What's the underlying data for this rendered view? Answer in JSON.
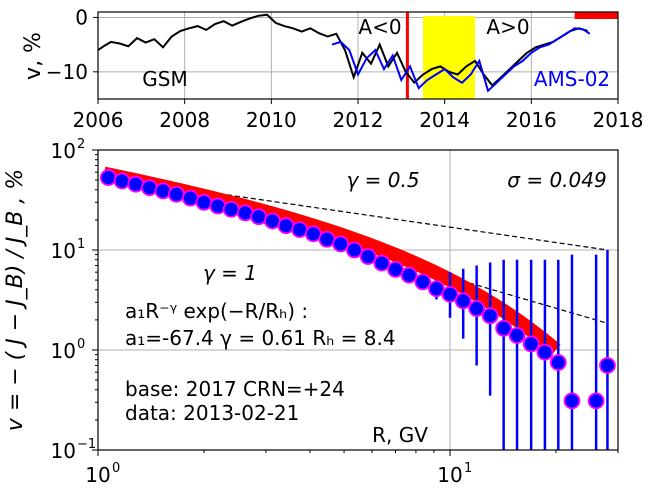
{
  "chart_data": [
    {
      "type": "line",
      "panel": "top",
      "ylabel": "v, %",
      "xlim": [
        2006,
        2018
      ],
      "ylim": [
        -15,
        1
      ],
      "xticks": [
        "2006",
        "2008",
        "2010",
        "2012",
        "2014",
        "2016",
        "2018"
      ],
      "yticks": [
        "0",
        "−10"
      ],
      "grid": true,
      "series": [
        {
          "name": "GSM",
          "color": "#000000",
          "x": [
            2006.0,
            2006.15,
            2006.3,
            2006.5,
            2006.7,
            2006.9,
            2007.1,
            2007.3,
            2007.5,
            2007.7,
            2007.9,
            2008.1,
            2008.3,
            2008.5,
            2008.7,
            2008.9,
            2009.1,
            2009.3,
            2009.5,
            2009.7,
            2009.9,
            2010.1,
            2010.3,
            2010.5,
            2010.7,
            2010.9,
            2011.1,
            2011.3,
            2011.5,
            2011.7,
            2011.9,
            2012.1,
            2012.3,
            2012.5,
            2012.7,
            2012.9,
            2013.1,
            2013.3,
            2013.5,
            2013.7,
            2013.9,
            2014.1,
            2014.3,
            2014.5,
            2014.7,
            2014.9,
            2015.1,
            2015.3,
            2015.5,
            2015.7,
            2015.9,
            2016.1,
            2016.3,
            2016.5,
            2016.7,
            2016.9,
            2017.1,
            2017.3
          ],
          "y": [
            -6.0,
            -5.2,
            -4.5,
            -4.8,
            -5.3,
            -3.8,
            -4.6,
            -4.0,
            -5.5,
            -3.5,
            -2.5,
            -2.0,
            -1.6,
            -2.3,
            -1.2,
            -0.7,
            -1.5,
            -0.8,
            -0.2,
            0.3,
            0.5,
            -1.0,
            -1.6,
            -2.0,
            -2.6,
            -2.0,
            -2.9,
            -3.5,
            -3.0,
            -6.0,
            -11.0,
            -6.5,
            -8.5,
            -5.0,
            -9.0,
            -6.5,
            -10.0,
            -12.0,
            -10.5,
            -9.5,
            -9.0,
            -10.0,
            -10.5,
            -9.0,
            -8.0,
            -10.5,
            -12.5,
            -11.0,
            -9.5,
            -8.0,
            -6.5,
            -5.5,
            -5.0,
            -4.5,
            -3.5,
            -2.5,
            -2.0,
            -2.5
          ]
        },
        {
          "name": "AMS-02",
          "color": "#0000ff",
          "x": [
            2011.4,
            2011.6,
            2011.8,
            2012.0,
            2012.2,
            2012.4,
            2012.6,
            2012.8,
            2013.0,
            2013.2,
            2013.4,
            2013.6,
            2013.8,
            2014.0,
            2014.2,
            2014.4,
            2014.6,
            2014.8,
            2015.0,
            2015.2,
            2015.4,
            2015.6,
            2015.8,
            2016.0,
            2016.2,
            2016.4,
            2016.6,
            2016.8,
            2017.0,
            2017.2,
            2017.35
          ],
          "y": [
            -5.0,
            -4.5,
            -6.0,
            -10.5,
            -7.5,
            -6.0,
            -9.5,
            -7.0,
            -11.5,
            -9.0,
            -13.0,
            -11.5,
            -10.5,
            -9.5,
            -11.0,
            -12.0,
            -10.5,
            -8.0,
            -13.5,
            -12.0,
            -10.5,
            -9.0,
            -8.0,
            -6.5,
            -5.5,
            -5.0,
            -4.0,
            -3.0,
            -2.0,
            -2.2,
            -3.0
          ]
        }
      ],
      "event_line_x": 2013.14,
      "shaded_interval": [
        2013.5,
        2014.7
      ],
      "base_bar": [
        2017.0,
        2018.0
      ],
      "annotations": [
        "A<0",
        "A>0",
        "GSM",
        "AMS-02"
      ]
    },
    {
      "type": "scatter",
      "panel": "bottom",
      "xscale": "log",
      "yscale": "log",
      "xlabel": "R, GV",
      "ylabel": "v  =  − ( J − J_B) / J_B ,  %",
      "xlim": [
        1.0,
        30.0
      ],
      "ylim": [
        0.1,
        100
      ],
      "grid": true,
      "x": [
        1.07,
        1.17,
        1.28,
        1.4,
        1.53,
        1.67,
        1.83,
        2.0,
        2.19,
        2.39,
        2.62,
        2.86,
        3.13,
        3.42,
        3.74,
        4.09,
        4.47,
        4.89,
        5.35,
        5.85,
        6.4,
        7.0,
        7.65,
        8.37,
        9.15,
        10.0,
        10.9,
        11.9,
        13.0,
        14.2,
        15.5,
        17.0,
        18.6,
        20.3,
        22.2,
        26.0,
        28.0
      ],
      "y": [
        53.0,
        49.0,
        45.5,
        42.0,
        39.0,
        36.0,
        33.0,
        30.0,
        27.5,
        25.5,
        23.5,
        21.5,
        19.5,
        17.5,
        16.0,
        14.5,
        12.8,
        11.5,
        10.0,
        8.6,
        7.4,
        6.4,
        5.6,
        4.8,
        4.1,
        3.6,
        3.1,
        2.6,
        2.2,
        1.65,
        1.4,
        1.15,
        0.95,
        0.75,
        0.31,
        0.31,
        0.7
      ],
      "yerr_low": [
        53.0,
        49.0,
        45.5,
        42.0,
        39.0,
        36.0,
        33.0,
        30.0,
        27.5,
        25.5,
        23.5,
        21.5,
        19.5,
        17.5,
        16.0,
        14.5,
        12.8,
        11.5,
        10.0,
        8.6,
        7.4,
        6.4,
        5.6,
        4.8,
        4.1,
        3.6,
        3.1,
        2.6,
        2.2,
        1.65,
        1.4,
        1.15,
        0.95,
        0.75,
        0.31,
        0.31,
        0.7
      ],
      "yerr_high": [
        53.0,
        49.0,
        45.5,
        42.0,
        39.0,
        36.0,
        33.0,
        30.0,
        27.5,
        25.5,
        23.5,
        21.5,
        19.5,
        17.5,
        16.0,
        14.5,
        12.8,
        11.5,
        10.0,
        8.6,
        7.4,
        6.4,
        5.6,
        4.8,
        4.1,
        3.6,
        3.1,
        2.6,
        2.2,
        1.65,
        1.4,
        1.15,
        0.95,
        0.75,
        0.31,
        0.31,
        0.7
      ],
      "yerr_top": [
        53.0,
        49.0,
        45.5,
        42.0,
        39.0,
        36.0,
        33.0,
        30.0,
        27.5,
        25.5,
        23.5,
        21.5,
        19.5,
        17.5,
        16.0,
        14.5,
        12.8,
        11.5,
        10.0,
        8.6,
        7.4,
        6.4,
        5.6,
        4.8,
        4.1,
        3.6,
        3.1,
        2.6,
        2.2,
        1.65,
        1.4,
        1.15,
        0.95,
        0.75,
        0.31,
        0.31,
        0.7
      ],
      "fit": {
        "a1": -67.4,
        "gamma": 0.61,
        "RH": 8.4,
        "x_range": [
          1.04,
          20.0
        ],
        "color": "#ff0000"
      },
      "ref_lines": [
        {
          "gamma": 0.5,
          "x": [
            1.07,
            28.0
          ],
          "y": [
            53.0,
            10.0
          ]
        },
        {
          "gamma": 1,
          "x": [
            1.07,
            28.0
          ],
          "y": [
            53.0,
            1.85
          ]
        }
      ],
      "point_fill": "#0000ff",
      "point_edge": "#ff00ff",
      "errbar_color": "#0000ff"
    }
  ],
  "text": {
    "top_ylabel": "v, %",
    "a_neg": "A<0",
    "a_pos": "A>0",
    "gsm": "GSM",
    "ams": "AMS-02",
    "gamma_half": "γ = 0.5",
    "gamma_one": "γ = 1",
    "sigma": "σ = 0.049",
    "formula": "a₁R⁻ᵞ exp(−R/Rₕ) :",
    "params": "a₁=-67.4  γ = 0.61  Rₕ =  8.4",
    "base": "base: 2017   CRN=+24",
    "data_date": "data: 2013-02-21",
    "xlabel": "R, GV",
    "bottom_ylabel": "v  =  − ( J − J_B) / J_B ,  %"
  },
  "colors": {
    "gsm": "#000000",
    "ams": "#0000ff",
    "event": "#ff0000",
    "shade": "#ffff00",
    "grid": "#b0b0b0",
    "fit": "#ff0000",
    "points": "#0000ff",
    "point_edge": "#ff00ff"
  }
}
